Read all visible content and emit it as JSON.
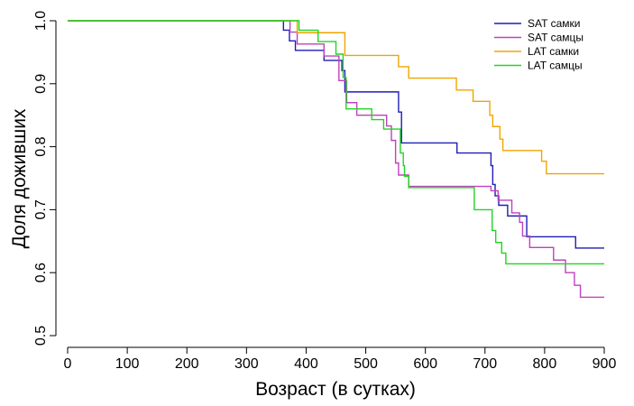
{
  "chart_data": {
    "type": "line",
    "step": true,
    "xlabel": "Возраст (в сутках)",
    "ylabel": "Доля доживших",
    "xlim": [
      0,
      900
    ],
    "ylim": [
      0.5,
      1.0
    ],
    "xticks": [
      0,
      100,
      200,
      300,
      400,
      500,
      600,
      700,
      800,
      900
    ],
    "yticks": [
      0.5,
      0.6,
      0.7,
      0.8,
      0.9,
      1.0
    ],
    "xtick_labels": [
      "0",
      "100",
      "200",
      "300",
      "400",
      "500",
      "600",
      "700",
      "800",
      "900"
    ],
    "ytick_labels": [
      "0.5",
      "0.6",
      "0.7",
      "0.8",
      "0.9",
      "1.0"
    ],
    "legend_position": "top-right",
    "series": [
      {
        "name": "SAT самки",
        "color": "#1f1fb4",
        "points": [
          [
            0,
            1.0
          ],
          [
            362,
            1.0
          ],
          [
            362,
            0.985
          ],
          [
            372,
            0.985
          ],
          [
            372,
            0.968
          ],
          [
            382,
            0.968
          ],
          [
            382,
            0.953
          ],
          [
            430,
            0.953
          ],
          [
            430,
            0.937
          ],
          [
            460,
            0.937
          ],
          [
            460,
            0.921
          ],
          [
            465,
            0.921
          ],
          [
            465,
            0.887
          ],
          [
            555,
            0.887
          ],
          [
            555,
            0.855
          ],
          [
            560,
            0.855
          ],
          [
            560,
            0.806
          ],
          [
            653,
            0.806
          ],
          [
            653,
            0.79
          ],
          [
            710,
            0.79
          ],
          [
            710,
            0.77
          ],
          [
            713,
            0.77
          ],
          [
            713,
            0.74
          ],
          [
            717,
            0.74
          ],
          [
            717,
            0.722
          ],
          [
            723,
            0.722
          ],
          [
            723,
            0.707
          ],
          [
            738,
            0.707
          ],
          [
            738,
            0.69
          ],
          [
            770,
            0.69
          ],
          [
            770,
            0.657
          ],
          [
            852,
            0.657
          ],
          [
            852,
            0.639
          ],
          [
            900,
            0.639
          ]
        ]
      },
      {
        "name": "SAT самцы",
        "color": "#c040c0",
        "points": [
          [
            0,
            1.0
          ],
          [
            373,
            1.0
          ],
          [
            373,
            0.982
          ],
          [
            385,
            0.982
          ],
          [
            385,
            0.963
          ],
          [
            430,
            0.963
          ],
          [
            430,
            0.944
          ],
          [
            455,
            0.944
          ],
          [
            455,
            0.905
          ],
          [
            468,
            0.905
          ],
          [
            468,
            0.87
          ],
          [
            485,
            0.87
          ],
          [
            485,
            0.85
          ],
          [
            535,
            0.85
          ],
          [
            535,
            0.833
          ],
          [
            543,
            0.833
          ],
          [
            543,
            0.81
          ],
          [
            550,
            0.81
          ],
          [
            550,
            0.774
          ],
          [
            555,
            0.774
          ],
          [
            555,
            0.755
          ],
          [
            572,
            0.755
          ],
          [
            572,
            0.737
          ],
          [
            710,
            0.737
          ],
          [
            710,
            0.73
          ],
          [
            722,
            0.73
          ],
          [
            722,
            0.715
          ],
          [
            745,
            0.715
          ],
          [
            745,
            0.695
          ],
          [
            758,
            0.695
          ],
          [
            758,
            0.68
          ],
          [
            763,
            0.68
          ],
          [
            763,
            0.658
          ],
          [
            775,
            0.658
          ],
          [
            775,
            0.64
          ],
          [
            815,
            0.64
          ],
          [
            815,
            0.62
          ],
          [
            835,
            0.62
          ],
          [
            835,
            0.6
          ],
          [
            850,
            0.6
          ],
          [
            850,
            0.58
          ],
          [
            860,
            0.58
          ],
          [
            860,
            0.561
          ],
          [
            900,
            0.561
          ]
        ]
      },
      {
        "name": "LAT самки",
        "color": "#f0a500",
        "points": [
          [
            0,
            1.0
          ],
          [
            385,
            1.0
          ],
          [
            385,
            0.981
          ],
          [
            465,
            0.981
          ],
          [
            465,
            0.945
          ],
          [
            555,
            0.945
          ],
          [
            555,
            0.927
          ],
          [
            572,
            0.927
          ],
          [
            572,
            0.909
          ],
          [
            652,
            0.909
          ],
          [
            652,
            0.89
          ],
          [
            680,
            0.89
          ],
          [
            680,
            0.872
          ],
          [
            708,
            0.872
          ],
          [
            708,
            0.85
          ],
          [
            713,
            0.85
          ],
          [
            713,
            0.832
          ],
          [
            725,
            0.832
          ],
          [
            725,
            0.812
          ],
          [
            730,
            0.812
          ],
          [
            730,
            0.794
          ],
          [
            795,
            0.794
          ],
          [
            795,
            0.777
          ],
          [
            803,
            0.777
          ],
          [
            803,
            0.757
          ],
          [
            900,
            0.757
          ]
        ]
      },
      {
        "name": "LAT самцы",
        "color": "#22d422",
        "points": [
          [
            0,
            1.0
          ],
          [
            388,
            1.0
          ],
          [
            388,
            0.985
          ],
          [
            420,
            0.985
          ],
          [
            420,
            0.967
          ],
          [
            450,
            0.967
          ],
          [
            450,
            0.947
          ],
          [
            462,
            0.947
          ],
          [
            462,
            0.91
          ],
          [
            467,
            0.91
          ],
          [
            467,
            0.86
          ],
          [
            510,
            0.86
          ],
          [
            510,
            0.843
          ],
          [
            530,
            0.843
          ],
          [
            530,
            0.828
          ],
          [
            558,
            0.828
          ],
          [
            558,
            0.79
          ],
          [
            563,
            0.79
          ],
          [
            563,
            0.77
          ],
          [
            565,
            0.77
          ],
          [
            565,
            0.753
          ],
          [
            572,
            0.753
          ],
          [
            572,
            0.735
          ],
          [
            682,
            0.735
          ],
          [
            682,
            0.7
          ],
          [
            712,
            0.7
          ],
          [
            712,
            0.667
          ],
          [
            718,
            0.667
          ],
          [
            718,
            0.648
          ],
          [
            728,
            0.648
          ],
          [
            728,
            0.631
          ],
          [
            735,
            0.631
          ],
          [
            735,
            0.614
          ],
          [
            900,
            0.614
          ]
        ]
      }
    ]
  }
}
